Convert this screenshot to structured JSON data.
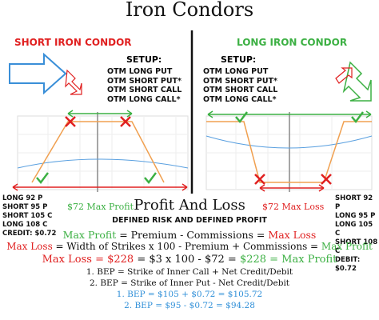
{
  "title": "Iron Condors",
  "left": {
    "heading": "SHORT IRON CONDOR",
    "setup_title": "SETUP:",
    "setup": [
      "OTM LONG PUT",
      "OTM SHORT PUT*",
      "OTM SHORT CALL",
      "OTM LONG CALL*"
    ],
    "legs": [
      "LONG 92 P",
      "SHORT 95 P",
      "SHORT 105 C",
      "LONG 108 C",
      "CREDIT: $0.72"
    ],
    "max": "$72 Max Profit"
  },
  "right": {
    "heading": "LONG IRON CONDOR",
    "setup_title": "SETUP:",
    "setup": [
      "OTM LONG PUT",
      "OTM SHORT PUT*",
      "OTM SHORT CALL",
      "OTM LONG CALL*"
    ],
    "legs": [
      "SHORT 92 P",
      "LONG 95 P",
      "LONG 105 C",
      "SHORT 108 C",
      "DEBIT: $0.72"
    ],
    "max": "$72 Max Loss"
  },
  "section": {
    "title": "Profit And Loss",
    "subtitle": "DEFINED RISK AND DEFINED PROFIT"
  },
  "formulas": [
    {
      "segments": [
        {
          "text": "Max Profit",
          "color": "#3cb043"
        },
        {
          "text": " = Premium - Commissions = ",
          "color": "#111111"
        },
        {
          "text": "Max Loss",
          "color": "#e02020"
        }
      ]
    },
    {
      "segments": [
        {
          "text": "Max Loss",
          "color": "#e02020"
        },
        {
          "text": " = Width of Strikes x 100 - Premium + Commissions = ",
          "color": "#111111"
        },
        {
          "text": "Max Profit",
          "color": "#3cb043"
        }
      ]
    },
    {
      "segments": [
        {
          "text": "Max Loss = $228",
          "color": "#e02020"
        },
        {
          "text": " = $3 x 100 - $72 = ",
          "color": "#111111"
        },
        {
          "text": "$228 = Max Profit",
          "color": "#3cb043"
        }
      ]
    },
    {
      "segments": [
        {
          "text": "1. BEP = Strike of Inner Call + Net Credit/Debit",
          "color": "#111111"
        }
      ]
    },
    {
      "segments": [
        {
          "text": "2. BEP = Strike of Inner Put - Net Credit/Debit",
          "color": "#111111"
        }
      ]
    },
    {
      "segments": [
        {
          "text": "1. BEP = $105 + $0.72 = $105.72",
          "color": "#2f8fd8"
        }
      ]
    },
    {
      "segments": [
        {
          "text": "2. BEP = $95 - $0.72 = $94.28",
          "color": "#2f8fd8"
        }
      ]
    }
  ]
}
